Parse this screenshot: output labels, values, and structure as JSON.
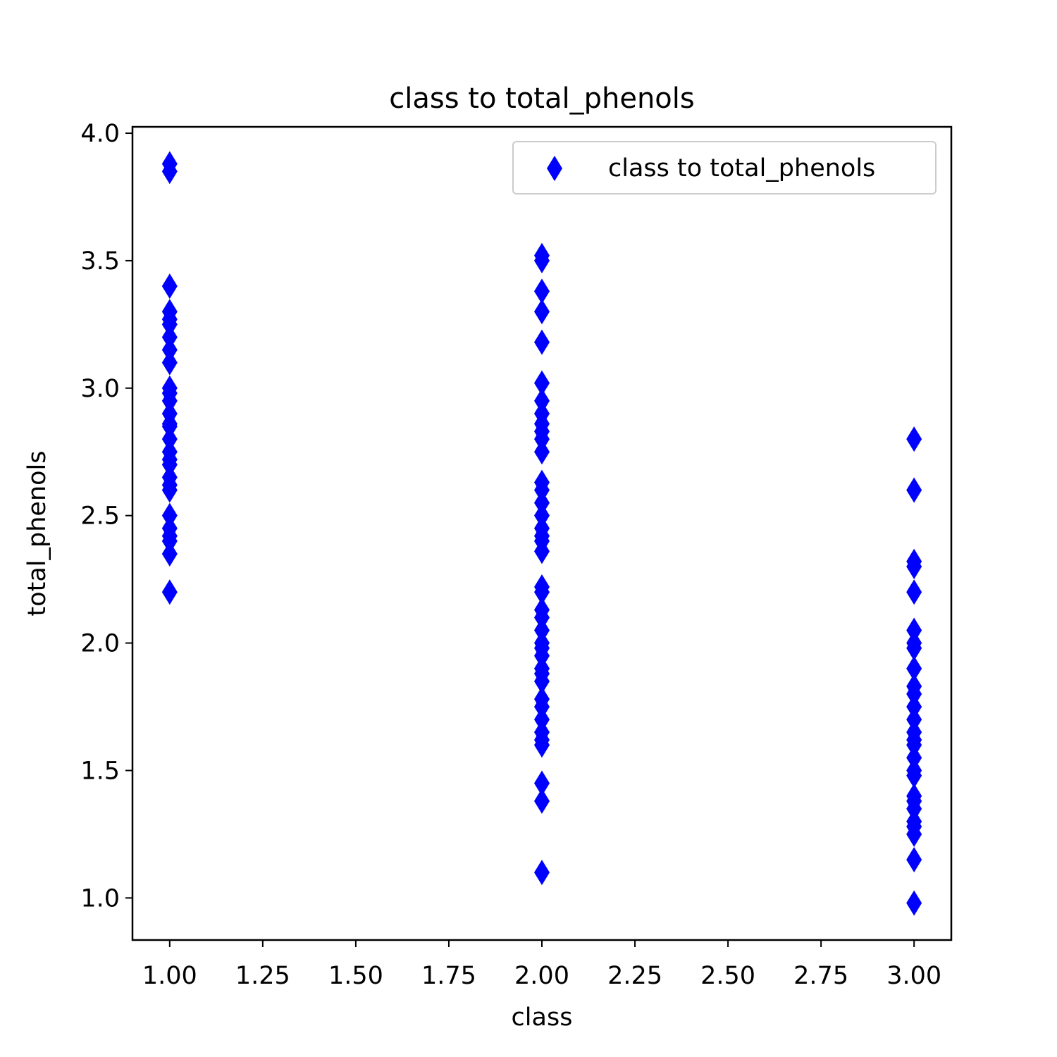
{
  "chart_data": {
    "type": "scatter",
    "title": "class to total_phenols",
    "x_label": "class",
    "y_label": "total_phenols",
    "x": [
      1,
      1,
      1,
      1,
      1,
      1,
      1,
      1,
      1,
      1,
      1,
      1,
      1,
      1,
      1,
      1,
      1,
      1,
      1,
      1,
      1,
      1,
      1,
      1,
      1,
      1,
      1,
      1,
      2,
      2,
      2,
      2,
      2,
      2,
      2,
      2,
      2,
      2,
      2,
      2,
      2,
      2,
      2,
      2,
      2,
      2,
      2,
      2,
      2,
      2,
      2,
      2,
      2,
      2,
      2,
      2,
      2,
      2,
      2,
      2,
      2,
      2,
      2,
      2,
      2,
      2,
      2,
      2,
      3,
      3,
      3,
      3,
      3,
      3,
      3,
      3,
      3,
      3,
      3,
      3,
      3,
      3,
      3,
      3,
      3,
      3,
      3,
      3,
      3,
      3,
      3,
      3,
      3,
      3,
      3
    ],
    "series": [
      {
        "name": "class to total_phenols",
        "color": "#0000ff",
        "marker": "thin_diamond",
        "values": [
          3.88,
          3.85,
          3.4,
          3.3,
          3.27,
          3.25,
          3.2,
          3.15,
          3.1,
          3.0,
          2.98,
          2.95,
          2.9,
          2.86,
          2.85,
          2.8,
          2.75,
          2.72,
          2.7,
          2.65,
          2.62,
          2.6,
          2.5,
          2.45,
          2.42,
          2.4,
          2.35,
          2.2,
          3.52,
          3.5,
          3.38,
          3.3,
          3.18,
          3.02,
          2.95,
          2.9,
          2.86,
          2.83,
          2.8,
          2.75,
          2.63,
          2.6,
          2.55,
          2.5,
          2.45,
          2.42,
          2.4,
          2.36,
          2.22,
          2.2,
          2.13,
          2.1,
          2.05,
          2.0,
          1.98,
          1.95,
          1.9,
          1.88,
          1.85,
          1.78,
          1.75,
          1.7,
          1.65,
          1.62,
          1.6,
          1.45,
          1.38,
          1.1,
          2.8,
          2.6,
          2.32,
          2.3,
          2.2,
          2.05,
          2.0,
          1.98,
          1.9,
          1.83,
          1.8,
          1.75,
          1.7,
          1.65,
          1.62,
          1.6,
          1.55,
          1.5,
          1.48,
          1.4,
          1.38,
          1.35,
          1.3,
          1.28,
          1.25,
          1.15,
          0.98
        ]
      }
    ],
    "xlim": [
      0.9,
      3.1
    ],
    "ylim": [
      0.835,
      4.025
    ],
    "xticks": [
      {
        "value": 1,
        "label": "1.00"
      },
      {
        "value": 1.25,
        "label": "1.25"
      },
      {
        "value": 1.5,
        "label": "1.50"
      },
      {
        "value": 1.75,
        "label": "1.75"
      },
      {
        "value": 2,
        "label": "2.00"
      },
      {
        "value": 2.25,
        "label": "2.25"
      },
      {
        "value": 2.5,
        "label": "2.50"
      },
      {
        "value": 2.75,
        "label": "2.75"
      },
      {
        "value": 3,
        "label": "3.00"
      }
    ],
    "yticks": [
      {
        "value": 1,
        "label": "1.0"
      },
      {
        "value": 1.5,
        "label": "1.5"
      },
      {
        "value": 2,
        "label": "2.0"
      },
      {
        "value": 2.5,
        "label": "2.5"
      },
      {
        "value": 3,
        "label": "3.0"
      },
      {
        "value": 3.5,
        "label": "3.5"
      },
      {
        "value": 4,
        "label": "4.0"
      }
    ],
    "legend": "upper right",
    "grid": false
  }
}
